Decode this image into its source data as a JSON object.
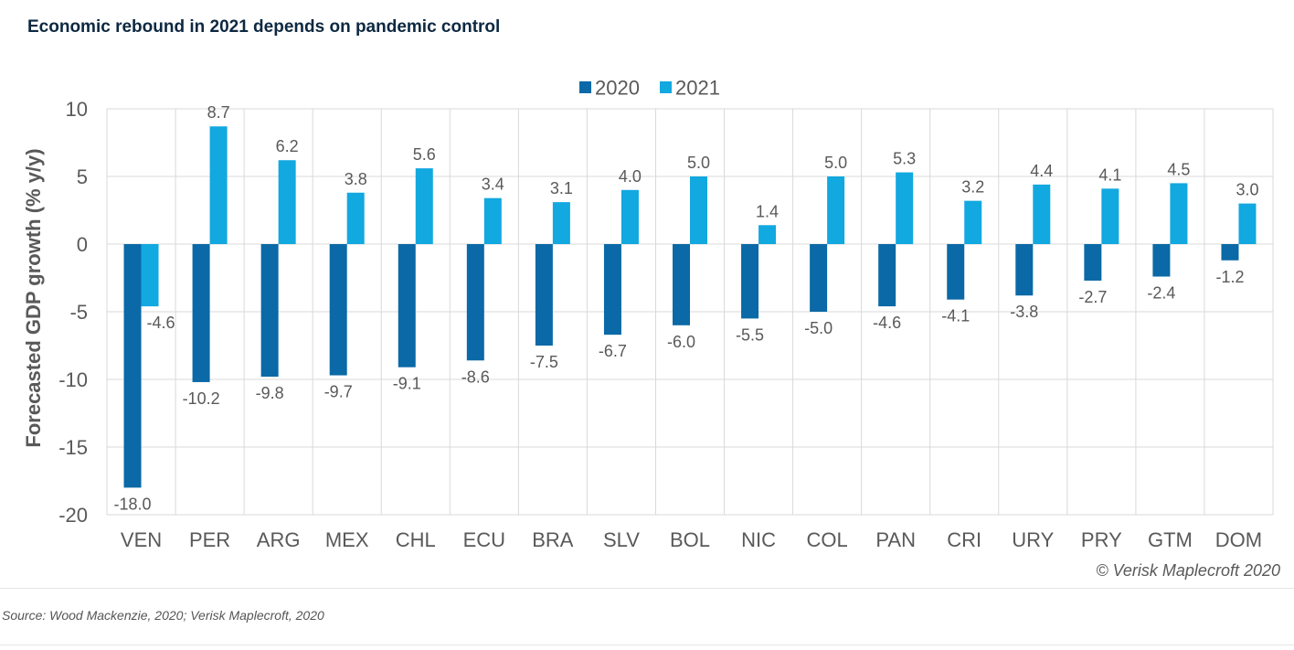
{
  "title": "Economic rebound in 2021 depends on pandemic control",
  "source": "Source: Wood Mackenzie, 2020; Verisk Maplecroft, 2020",
  "colors": {
    "s2020": "#0a69a6",
    "s2021": "#12a8e0",
    "text": "#595959",
    "grid": "#d9d9d9"
  },
  "chart_data": {
    "type": "bar",
    "ylabel": "Forecasted GDP growth (% y/y)",
    "xlabel": "",
    "ylim": [
      -20,
      10
    ],
    "yticks": [
      10,
      5,
      0,
      -5,
      -10,
      -15,
      -20
    ],
    "grid": true,
    "legend_position": "top-center",
    "watermark": "© Verisk Maplecroft 2020",
    "categories": [
      "VEN",
      "PER",
      "ARG",
      "MEX",
      "CHL",
      "ECU",
      "BRA",
      "SLV",
      "BOL",
      "NIC",
      "COL",
      "PAN",
      "CRI",
      "URY",
      "PRY",
      "GTM",
      "DOM"
    ],
    "series": [
      {
        "name": "2020",
        "values": [
          -18.0,
          -10.2,
          -9.8,
          -9.7,
          -9.1,
          -8.6,
          -7.5,
          -6.7,
          -6.0,
          -5.5,
          -5.0,
          -4.6,
          -4.1,
          -3.8,
          -2.7,
          -2.4,
          -1.2
        ]
      },
      {
        "name": "2021",
        "values": [
          -4.6,
          8.7,
          6.2,
          3.8,
          5.6,
          3.4,
          3.1,
          4.0,
          5.0,
          1.4,
          5.0,
          5.3,
          3.2,
          4.4,
          4.1,
          4.5,
          3.0
        ]
      }
    ]
  }
}
